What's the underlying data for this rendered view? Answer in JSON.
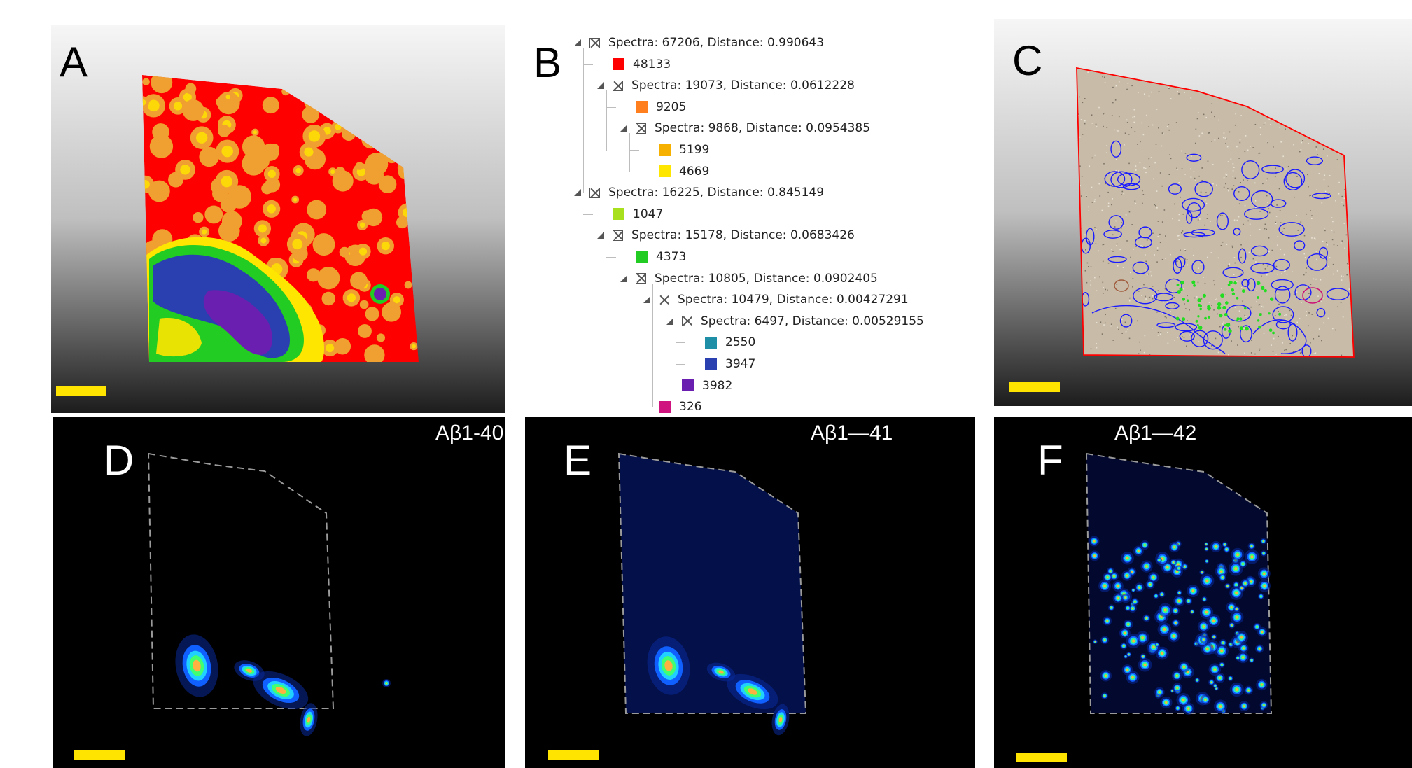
{
  "panels": {
    "a": {
      "letter": "A"
    },
    "b": {
      "letter": "B"
    },
    "c": {
      "letter": "C"
    },
    "d": {
      "letter": "D",
      "title": "Aβ1-40"
    },
    "e": {
      "letter": "E",
      "title": "Aβ1—41"
    },
    "f": {
      "letter": "F",
      "title": "Aβ1—42"
    }
  },
  "tree": {
    "rows": [
      {
        "kind": "node",
        "depth": 0,
        "label": "Spectra: 67206, Distance: 0.990643"
      },
      {
        "kind": "leaf",
        "depth": 1,
        "label": "48133",
        "color": "#ff0000"
      },
      {
        "kind": "node",
        "depth": 1,
        "label": "Spectra: 19073, Distance: 0.0612228"
      },
      {
        "kind": "leaf",
        "depth": 2,
        "label": "9205",
        "color": "#ff7f1e"
      },
      {
        "kind": "node",
        "depth": 2,
        "label": "Spectra: 9868, Distance: 0.0954385"
      },
      {
        "kind": "leaf",
        "depth": 3,
        "label": "5199",
        "color": "#f5b000"
      },
      {
        "kind": "leaf",
        "depth": 3,
        "label": "4669",
        "color": "#ffe600"
      },
      {
        "kind": "node",
        "depth": 0,
        "label": "Spectra: 16225, Distance: 0.845149"
      },
      {
        "kind": "leaf",
        "depth": 1,
        "label": "1047",
        "color": "#a8e01e"
      },
      {
        "kind": "node",
        "depth": 1,
        "label": "Spectra: 15178, Distance: 0.0683426"
      },
      {
        "kind": "leaf",
        "depth": 2,
        "label": "4373",
        "color": "#22cc22"
      },
      {
        "kind": "node",
        "depth": 2,
        "label": "Spectra: 10805, Distance: 0.0902405"
      },
      {
        "kind": "node",
        "depth": 3,
        "label": "Spectra: 10479, Distance: 0.00427291"
      },
      {
        "kind": "node",
        "depth": 4,
        "label": "Spectra: 6497, Distance: 0.00529155"
      },
      {
        "kind": "leaf",
        "depth": 5,
        "label": "2550",
        "color": "#1f8fa8"
      },
      {
        "kind": "leaf",
        "depth": 5,
        "label": "3947",
        "color": "#2a3fb0"
      },
      {
        "kind": "leaf",
        "depth": 4,
        "label": "3982",
        "color": "#6a1fb0"
      },
      {
        "kind": "leaf",
        "depth": 3,
        "label": "326",
        "color": "#d0147f"
      }
    ]
  },
  "colors": {
    "scalebar": "#ffe400",
    "outline_dashed": "#9a9a9a",
    "cluster_red": "#ff0000",
    "cluster_orange": "#f0a030",
    "cluster_yellow": "#ffe600",
    "cluster_green": "#22cc22",
    "cluster_blue": "#2a3fb0",
    "cluster_purple": "#6a1fb0",
    "contour_blue": "#1a1aff",
    "contour_green": "#22dd22",
    "contour_magenta": "#cc1177",
    "tissue_beige": "#c8bca8"
  }
}
